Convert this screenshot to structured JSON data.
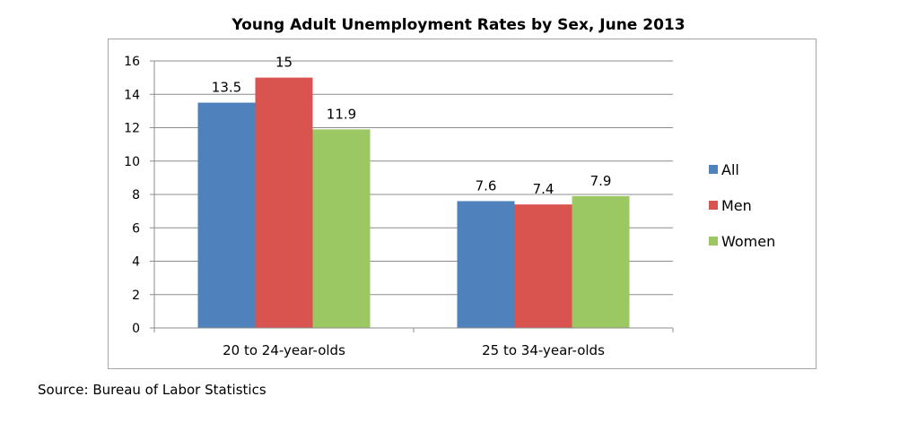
{
  "chart_data": {
    "type": "bar",
    "title": "Young Adult Unemployment Rates by Sex, June 2013",
    "categories": [
      "20 to 24-year-olds",
      "25 to 34-year-olds"
    ],
    "series": [
      {
        "name": "All",
        "values": [
          13.5,
          7.6
        ],
        "color": "#4f81bd",
        "labels": [
          "13.5",
          "7.6"
        ]
      },
      {
        "name": "Men",
        "values": [
          15,
          7.4
        ],
        "color": "#d9534f",
        "labels": [
          "15",
          "7.4"
        ]
      },
      {
        "name": "Women",
        "values": [
          11.9,
          7.9
        ],
        "color": "#9bc863",
        "labels": [
          "11.9",
          "7.9"
        ]
      }
    ],
    "ylim": [
      0,
      16
    ],
    "yticks": [
      "0",
      "2",
      "4",
      "6",
      "8",
      "10",
      "12",
      "14",
      "16"
    ],
    "xlabel": "",
    "ylabel": "",
    "grid": true,
    "legend_position": "right"
  },
  "source_note": "Source: Bureau of Labor Statistics"
}
